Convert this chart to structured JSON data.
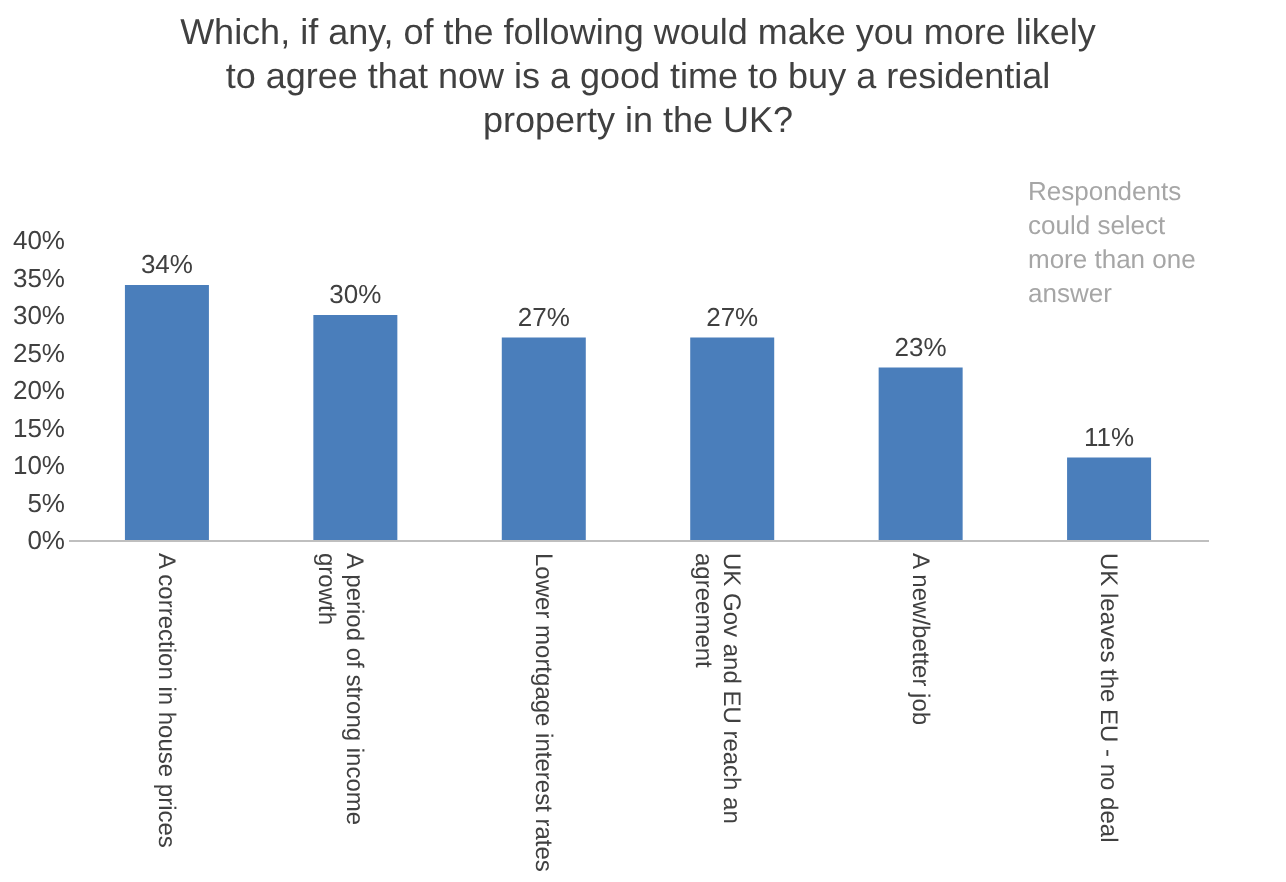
{
  "chart_data": {
    "type": "bar",
    "title": "Which, if any, of the following would make you more likely to agree that now is a good time to buy a residential property in the UK?",
    "categories": [
      "A correction in house prices",
      "A period of strong income growth",
      "Lower mortgage interest rates",
      "UK Gov and EU reach an agreement",
      "A new/better job",
      "UK leaves the EU - no deal"
    ],
    "values": [
      34,
      30,
      27,
      27,
      23,
      11
    ],
    "color": "#4a7ebb",
    "ylim": [
      0,
      40
    ],
    "yticks": [
      {
        "value": 0,
        "label": "0%"
      },
      {
        "value": 5,
        "label": "5%"
      },
      {
        "value": 10,
        "label": "10%"
      },
      {
        "value": 15,
        "label": "15%"
      },
      {
        "value": 20,
        "label": "20%"
      },
      {
        "value": 25,
        "label": "25%"
      },
      {
        "value": 30,
        "label": "30%"
      },
      {
        "value": 35,
        "label": "35%"
      },
      {
        "value": 40,
        "label": "40%"
      }
    ],
    "value_labels": [
      "34%",
      "30%",
      "27%",
      "27%",
      "23%",
      "11%"
    ],
    "grid": false,
    "annotations": [
      "Respondents could select more than one answer"
    ]
  }
}
